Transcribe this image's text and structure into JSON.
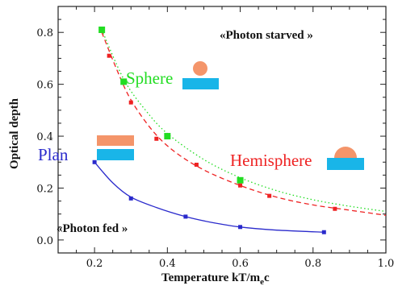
{
  "chart_data": {
    "type": "line",
    "xlabel": "Temperature kT/m",
    "xlabel_sub": "e",
    "xlabel_tail": "c",
    "ylabel": "Optical depth",
    "xlim": [
      0.1,
      1.0
    ],
    "ylim": [
      -0.05,
      0.9
    ],
    "x_ticks": [
      0.2,
      0.4,
      0.6,
      0.8,
      1.0
    ],
    "x_tick_labels": [
      "0.2",
      "0.4",
      "0.6",
      "0.8",
      "1.0"
    ],
    "y_ticks": [
      0.0,
      0.2,
      0.4,
      0.6,
      0.8
    ],
    "y_tick_labels": [
      "0.0",
      "0.2",
      "0.4",
      "0.6",
      "0.8"
    ],
    "grid": false,
    "annotations": {
      "starved": "«Photon starved »",
      "fed": "«Photon fed »"
    },
    "series": [
      {
        "name": "Sphere",
        "color": "#22dd22",
        "line_style": "dotted",
        "marker": "square",
        "points": [
          [
            0.22,
            0.81
          ],
          [
            0.28,
            0.61
          ],
          [
            0.4,
            0.4
          ],
          [
            0.6,
            0.23
          ]
        ],
        "curve": [
          [
            0.22,
            0.81
          ],
          [
            0.28,
            0.62
          ],
          [
            0.34,
            0.5
          ],
          [
            0.4,
            0.41
          ],
          [
            0.5,
            0.31
          ],
          [
            0.6,
            0.24
          ],
          [
            0.7,
            0.19
          ],
          [
            0.8,
            0.155
          ],
          [
            0.9,
            0.13
          ],
          [
            1.0,
            0.11
          ]
        ]
      },
      {
        "name": "Hemisphere",
        "color": "#ee2222",
        "line_style": "dashed",
        "marker": "square",
        "points": [
          [
            0.24,
            0.71
          ],
          [
            0.3,
            0.53
          ],
          [
            0.37,
            0.39
          ],
          [
            0.48,
            0.29
          ],
          [
            0.6,
            0.21
          ],
          [
            0.68,
            0.17
          ],
          [
            0.86,
            0.12
          ]
        ],
        "curve": [
          [
            0.22,
            0.8
          ],
          [
            0.26,
            0.66
          ],
          [
            0.3,
            0.54
          ],
          [
            0.36,
            0.42
          ],
          [
            0.42,
            0.34
          ],
          [
            0.5,
            0.27
          ],
          [
            0.6,
            0.21
          ],
          [
            0.7,
            0.165
          ],
          [
            0.8,
            0.135
          ],
          [
            0.9,
            0.115
          ],
          [
            1.0,
            0.095
          ]
        ]
      },
      {
        "name": "Plan",
        "color": "#2a2acc",
        "line_style": "solid",
        "marker": "square",
        "points": [
          [
            0.2,
            0.3
          ],
          [
            0.3,
            0.16
          ],
          [
            0.45,
            0.09
          ],
          [
            0.6,
            0.05
          ],
          [
            0.83,
            0.03
          ]
        ],
        "curve": [
          [
            0.2,
            0.3
          ],
          [
            0.25,
            0.22
          ],
          [
            0.3,
            0.165
          ],
          [
            0.37,
            0.125
          ],
          [
            0.45,
            0.09
          ],
          [
            0.52,
            0.068
          ],
          [
            0.6,
            0.05
          ],
          [
            0.7,
            0.038
          ],
          [
            0.83,
            0.03
          ]
        ]
      }
    ],
    "icons": {
      "ground_color": "#19b5e8",
      "source_color": "#f4956a"
    }
  }
}
